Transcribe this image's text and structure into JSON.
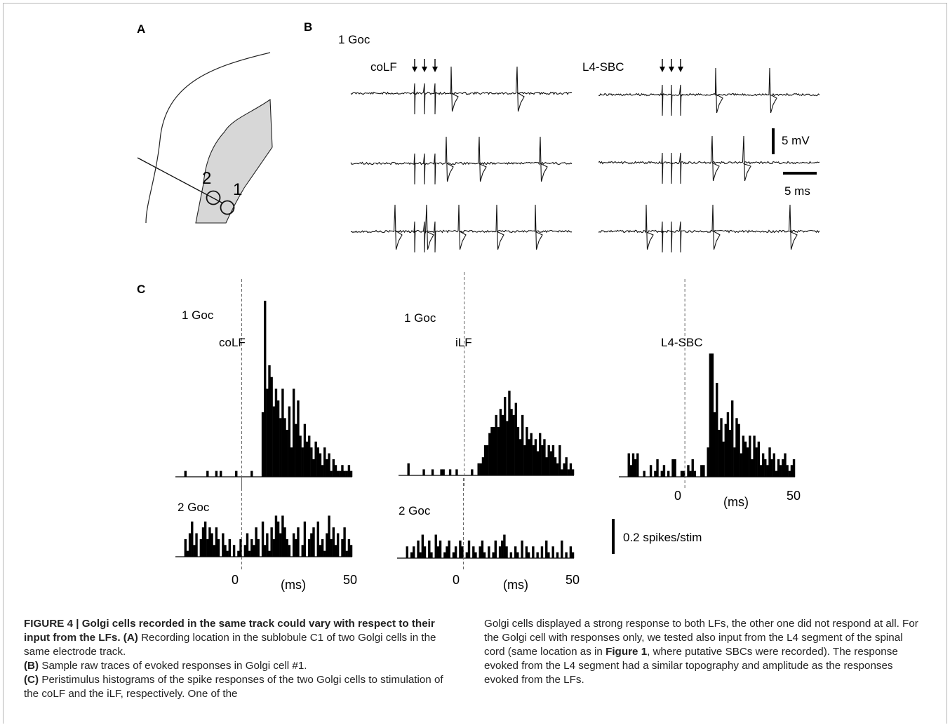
{
  "panels": {
    "a": {
      "label": "A",
      "sites": [
        "2",
        "1"
      ]
    },
    "b": {
      "label": "B",
      "cell": "1 Goc",
      "stim_left": "coLF",
      "stim_right": "L4-SBC",
      "scale_v": "5 mV",
      "scale_t": "5 ms"
    },
    "c": {
      "label": "C",
      "scale": "0.2 spikes/stim"
    }
  },
  "chart_data": [
    {
      "type": "bar",
      "title": "",
      "row_label": "1 Goc",
      "stimulus": "coLF",
      "xlabel": "(ms)",
      "x_ticks": [
        "0",
        "50"
      ],
      "xlim": [
        -30,
        50
      ],
      "bin_ms": 1,
      "ylim": [
        0,
        0.65
      ],
      "x": [
        -26,
        -25,
        -24,
        -23,
        -22,
        -21,
        -20,
        -19,
        -18,
        -17,
        -16,
        -15,
        -14,
        -13,
        -12,
        -11,
        -10,
        -9,
        -8,
        -7,
        -6,
        -5,
        -4,
        -3,
        -2,
        -1,
        0,
        1,
        2,
        3,
        4,
        5,
        6,
        7,
        8,
        9,
        10,
        11,
        12,
        13,
        14,
        15,
        16,
        17,
        18,
        19,
        20,
        21,
        22,
        23,
        24,
        25,
        26,
        27,
        28,
        29,
        30,
        31,
        32,
        33,
        34,
        35,
        36,
        37,
        38,
        39,
        40,
        41,
        42,
        43,
        44,
        45,
        46,
        47,
        48,
        49
      ],
      "values": [
        0.02,
        0,
        0,
        0,
        0,
        0,
        0,
        0,
        0,
        0,
        0.02,
        0,
        0,
        0,
        0.02,
        0,
        0.02,
        0,
        0,
        0,
        0,
        0,
        0,
        0.02,
        0,
        0,
        0,
        0,
        0,
        0,
        0.02,
        0,
        0,
        0,
        0,
        0.22,
        0.6,
        0.3,
        0.38,
        0.34,
        0.24,
        0.3,
        0.26,
        0.2,
        0.3,
        0.2,
        0.16,
        0.24,
        0.1,
        0.3,
        0.18,
        0.26,
        0.14,
        0.1,
        0.18,
        0.12,
        0.14,
        0.1,
        0.06,
        0.12,
        0.1,
        0.08,
        0.04,
        0.1,
        0.06,
        0.08,
        0.02,
        0.06,
        0.04,
        0.02,
        0.02,
        0.04,
        0.02,
        0.02,
        0.04,
        0.02
      ]
    },
    {
      "type": "bar",
      "title": "",
      "row_label": "1 Goc",
      "stimulus": "iLF",
      "xlabel": "(ms)",
      "x_ticks": [
        "0",
        "50"
      ],
      "xlim": [
        -30,
        50
      ],
      "bin_ms": 1,
      "ylim": [
        0,
        0.65
      ],
      "x": [
        -26,
        -25,
        -24,
        -23,
        -22,
        -21,
        -20,
        -19,
        -18,
        -17,
        -16,
        -15,
        -14,
        -13,
        -12,
        -11,
        -10,
        -9,
        -8,
        -7,
        -6,
        -5,
        -4,
        -3,
        -2,
        -1,
        0,
        1,
        2,
        3,
        4,
        5,
        6,
        7,
        8,
        9,
        10,
        11,
        12,
        13,
        14,
        15,
        16,
        17,
        18,
        19,
        20,
        21,
        22,
        23,
        24,
        25,
        26,
        27,
        28,
        29,
        30,
        31,
        32,
        33,
        34,
        35,
        36,
        37,
        38,
        39,
        40,
        41,
        42,
        43,
        44,
        45,
        46,
        47,
        48,
        49
      ],
      "values": [
        0.04,
        0,
        0,
        0,
        0,
        0,
        0,
        0.02,
        0,
        0,
        0,
        0.02,
        0,
        0,
        0,
        0.02,
        0.02,
        0,
        0,
        0.02,
        0,
        0,
        0.02,
        0,
        0,
        0,
        0,
        0,
        0,
        0.02,
        0,
        0,
        0.04,
        0.04,
        0.06,
        0.1,
        0.1,
        0.14,
        0.16,
        0.16,
        0.2,
        0.16,
        0.22,
        0.2,
        0.26,
        0.18,
        0.28,
        0.22,
        0.2,
        0.24,
        0.16,
        0.12,
        0.2,
        0.1,
        0.16,
        0.12,
        0.14,
        0.1,
        0.12,
        0.08,
        0.14,
        0.1,
        0.12,
        0.06,
        0.1,
        0.08,
        0.1,
        0.06,
        0.04,
        0.1,
        0.02,
        0.04,
        0.06,
        0.02,
        0.04,
        0.02
      ]
    },
    {
      "type": "bar",
      "title": "",
      "row_label": "",
      "stimulus": "L4-SBC",
      "xlabel": "(ms)",
      "x_ticks": [
        "0",
        "50"
      ],
      "xlim": [
        -30,
        50
      ],
      "bin_ms": 1,
      "ylim": [
        0,
        0.65
      ],
      "x": [
        -26,
        -25,
        -24,
        -23,
        -22,
        -21,
        -20,
        -19,
        -18,
        -17,
        -16,
        -15,
        -14,
        -13,
        -12,
        -11,
        -10,
        -9,
        -8,
        -7,
        -6,
        -5,
        -4,
        -3,
        -2,
        -1,
        0,
        1,
        2,
        3,
        4,
        5,
        6,
        7,
        8,
        9,
        10,
        11,
        12,
        13,
        14,
        15,
        16,
        17,
        18,
        19,
        20,
        21,
        22,
        23,
        24,
        25,
        26,
        27,
        28,
        29,
        30,
        31,
        32,
        33,
        34,
        35,
        36,
        37,
        38,
        39,
        40,
        41,
        42,
        43,
        44,
        45,
        46,
        47,
        48,
        49
      ],
      "values": [
        0.08,
        0.04,
        0.08,
        0.06,
        0.08,
        0,
        0,
        0.02,
        0,
        0,
        0.04,
        0,
        0.02,
        0.06,
        0,
        0.02,
        0.04,
        0,
        0.02,
        0,
        0.06,
        0.06,
        0,
        0,
        0.02,
        0.02,
        0,
        0.04,
        0.02,
        0.06,
        0.02,
        0,
        0,
        0.04,
        0.04,
        0,
        0.1,
        0.42,
        0.42,
        0.22,
        0.32,
        0.16,
        0.2,
        0.12,
        0.18,
        0.22,
        0.16,
        0.26,
        0.1,
        0.2,
        0.18,
        0.08,
        0.14,
        0.12,
        0.1,
        0.14,
        0.06,
        0.14,
        0.1,
        0.12,
        0.04,
        0.08,
        0.06,
        0.04,
        0.1,
        0.06,
        0.08,
        0.02,
        0.06,
        0.04,
        0.06,
        0.08,
        0.04,
        0.02,
        0.04,
        0.06
      ]
    },
    {
      "type": "bar",
      "title": "",
      "row_label": "2 Goc",
      "stimulus": "coLF",
      "xlabel": "(ms)",
      "x_ticks": [
        "0",
        "50"
      ],
      "xlim": [
        -30,
        50
      ],
      "bin_ms": 1,
      "ylim": [
        0,
        0.65
      ],
      "x": [
        -26,
        -25,
        -24,
        -23,
        -22,
        -21,
        -20,
        -19,
        -18,
        -17,
        -16,
        -15,
        -14,
        -13,
        -12,
        -11,
        -10,
        -9,
        -8,
        -7,
        -6,
        -5,
        -4,
        -3,
        -2,
        -1,
        0,
        1,
        2,
        3,
        4,
        5,
        6,
        7,
        8,
        9,
        10,
        11,
        12,
        13,
        14,
        15,
        16,
        17,
        18,
        19,
        20,
        21,
        22,
        23,
        24,
        25,
        26,
        27,
        28,
        29,
        30,
        31,
        32,
        33,
        34,
        35,
        36,
        37,
        38,
        39,
        40,
        41,
        42,
        43,
        44,
        45,
        46,
        47,
        48,
        49
      ],
      "values": [
        0.06,
        0.02,
        0.08,
        0.12,
        0.04,
        0.08,
        0,
        0.06,
        0.1,
        0.12,
        0.06,
        0.1,
        0.08,
        0.04,
        0.1,
        0.06,
        0,
        0.08,
        0.04,
        0.02,
        0.06,
        0,
        0.04,
        0,
        0.02,
        0.06,
        0,
        0.04,
        0.08,
        0.02,
        0.06,
        0.04,
        0.1,
        0.06,
        0,
        0.12,
        0.04,
        0.08,
        0.02,
        0.1,
        0.06,
        0.14,
        0.12,
        0.08,
        0.14,
        0.1,
        0.06,
        0.04,
        0,
        0.08,
        0.06,
        0.1,
        0,
        0.04,
        0.12,
        0,
        0.06,
        0.08,
        0.1,
        0,
        0.12,
        0.04,
        0.06,
        0.02,
        0.08,
        0.14,
        0.06,
        0.1,
        0.04,
        0.08,
        0,
        0.06,
        0.1,
        0.02,
        0.06,
        0.04
      ]
    },
    {
      "type": "bar",
      "title": "",
      "row_label": "2 Goc",
      "stimulus": "iLF",
      "xlabel": "(ms)",
      "x_ticks": [
        "0",
        "50"
      ],
      "xlim": [
        -30,
        50
      ],
      "bin_ms": 1,
      "ylim": [
        0,
        0.65
      ],
      "x": [
        -26,
        -25,
        -24,
        -23,
        -22,
        -21,
        -20,
        -19,
        -18,
        -17,
        -16,
        -15,
        -14,
        -13,
        -12,
        -11,
        -10,
        -9,
        -8,
        -7,
        -6,
        -5,
        -4,
        -3,
        -2,
        -1,
        0,
        1,
        2,
        3,
        4,
        5,
        6,
        7,
        8,
        9,
        10,
        11,
        12,
        13,
        14,
        15,
        16,
        17,
        18,
        19,
        20,
        21,
        22,
        23,
        24,
        25,
        26,
        27,
        28,
        29,
        30,
        31,
        32,
        33,
        34,
        35,
        36,
        37,
        38,
        39,
        40,
        41,
        42,
        43,
        44,
        45,
        46,
        47,
        48,
        49
      ],
      "values": [
        0.04,
        0,
        0.02,
        0.04,
        0,
        0.06,
        0.02,
        0.08,
        0.04,
        0,
        0.06,
        0.02,
        0,
        0.08,
        0.04,
        0.06,
        0,
        0.02,
        0.04,
        0.06,
        0,
        0.02,
        0.04,
        0,
        0.06,
        0.04,
        0,
        0.02,
        0.06,
        0,
        0.04,
        0.02,
        0,
        0.04,
        0.06,
        0.02,
        0,
        0.04,
        0,
        0.02,
        0.06,
        0,
        0.04,
        0.06,
        0.08,
        0.04,
        0,
        0.02,
        0,
        0.04,
        0.02,
        0,
        0.06,
        0,
        0.04,
        0.02,
        0,
        0.04,
        0,
        0.02,
        0,
        0.04,
        0,
        0.06,
        0.02,
        0,
        0.04,
        0,
        0.02,
        0,
        0.06,
        0,
        0.02,
        0,
        0.04,
        0.02
      ]
    }
  ],
  "caption": {
    "fig_label": "FIGURE 4 | Golgi cells recorded in the same track could vary with respect to their input from the LFs",
    "a_key": "(A)",
    "a_text": " Recording location in the sublobule C1 of two Golgi cells in the same electrode track.",
    "b_key": "(B)",
    "b_text": " Sample raw traces of evoked responses in Golgi cell #1.",
    "c_key": "(C)",
    "c_text": " Peristimulus histograms of the spike responses of the two Golgi cells to stimulation of the coLF and the iLF, respectively. One of the",
    "right_1": "Golgi cells displayed a strong response to both LFs, the other one did not respond at all. For the Golgi cell with responses only, we tested also input from the L4 segment of the spinal cord (same location as in ",
    "right_ref": "Figure 1",
    "right_2": ", where putative SBCs were recorded). The response evoked from the L4 segment had a similar topography and amplitude as the responses evoked from the LFs."
  }
}
